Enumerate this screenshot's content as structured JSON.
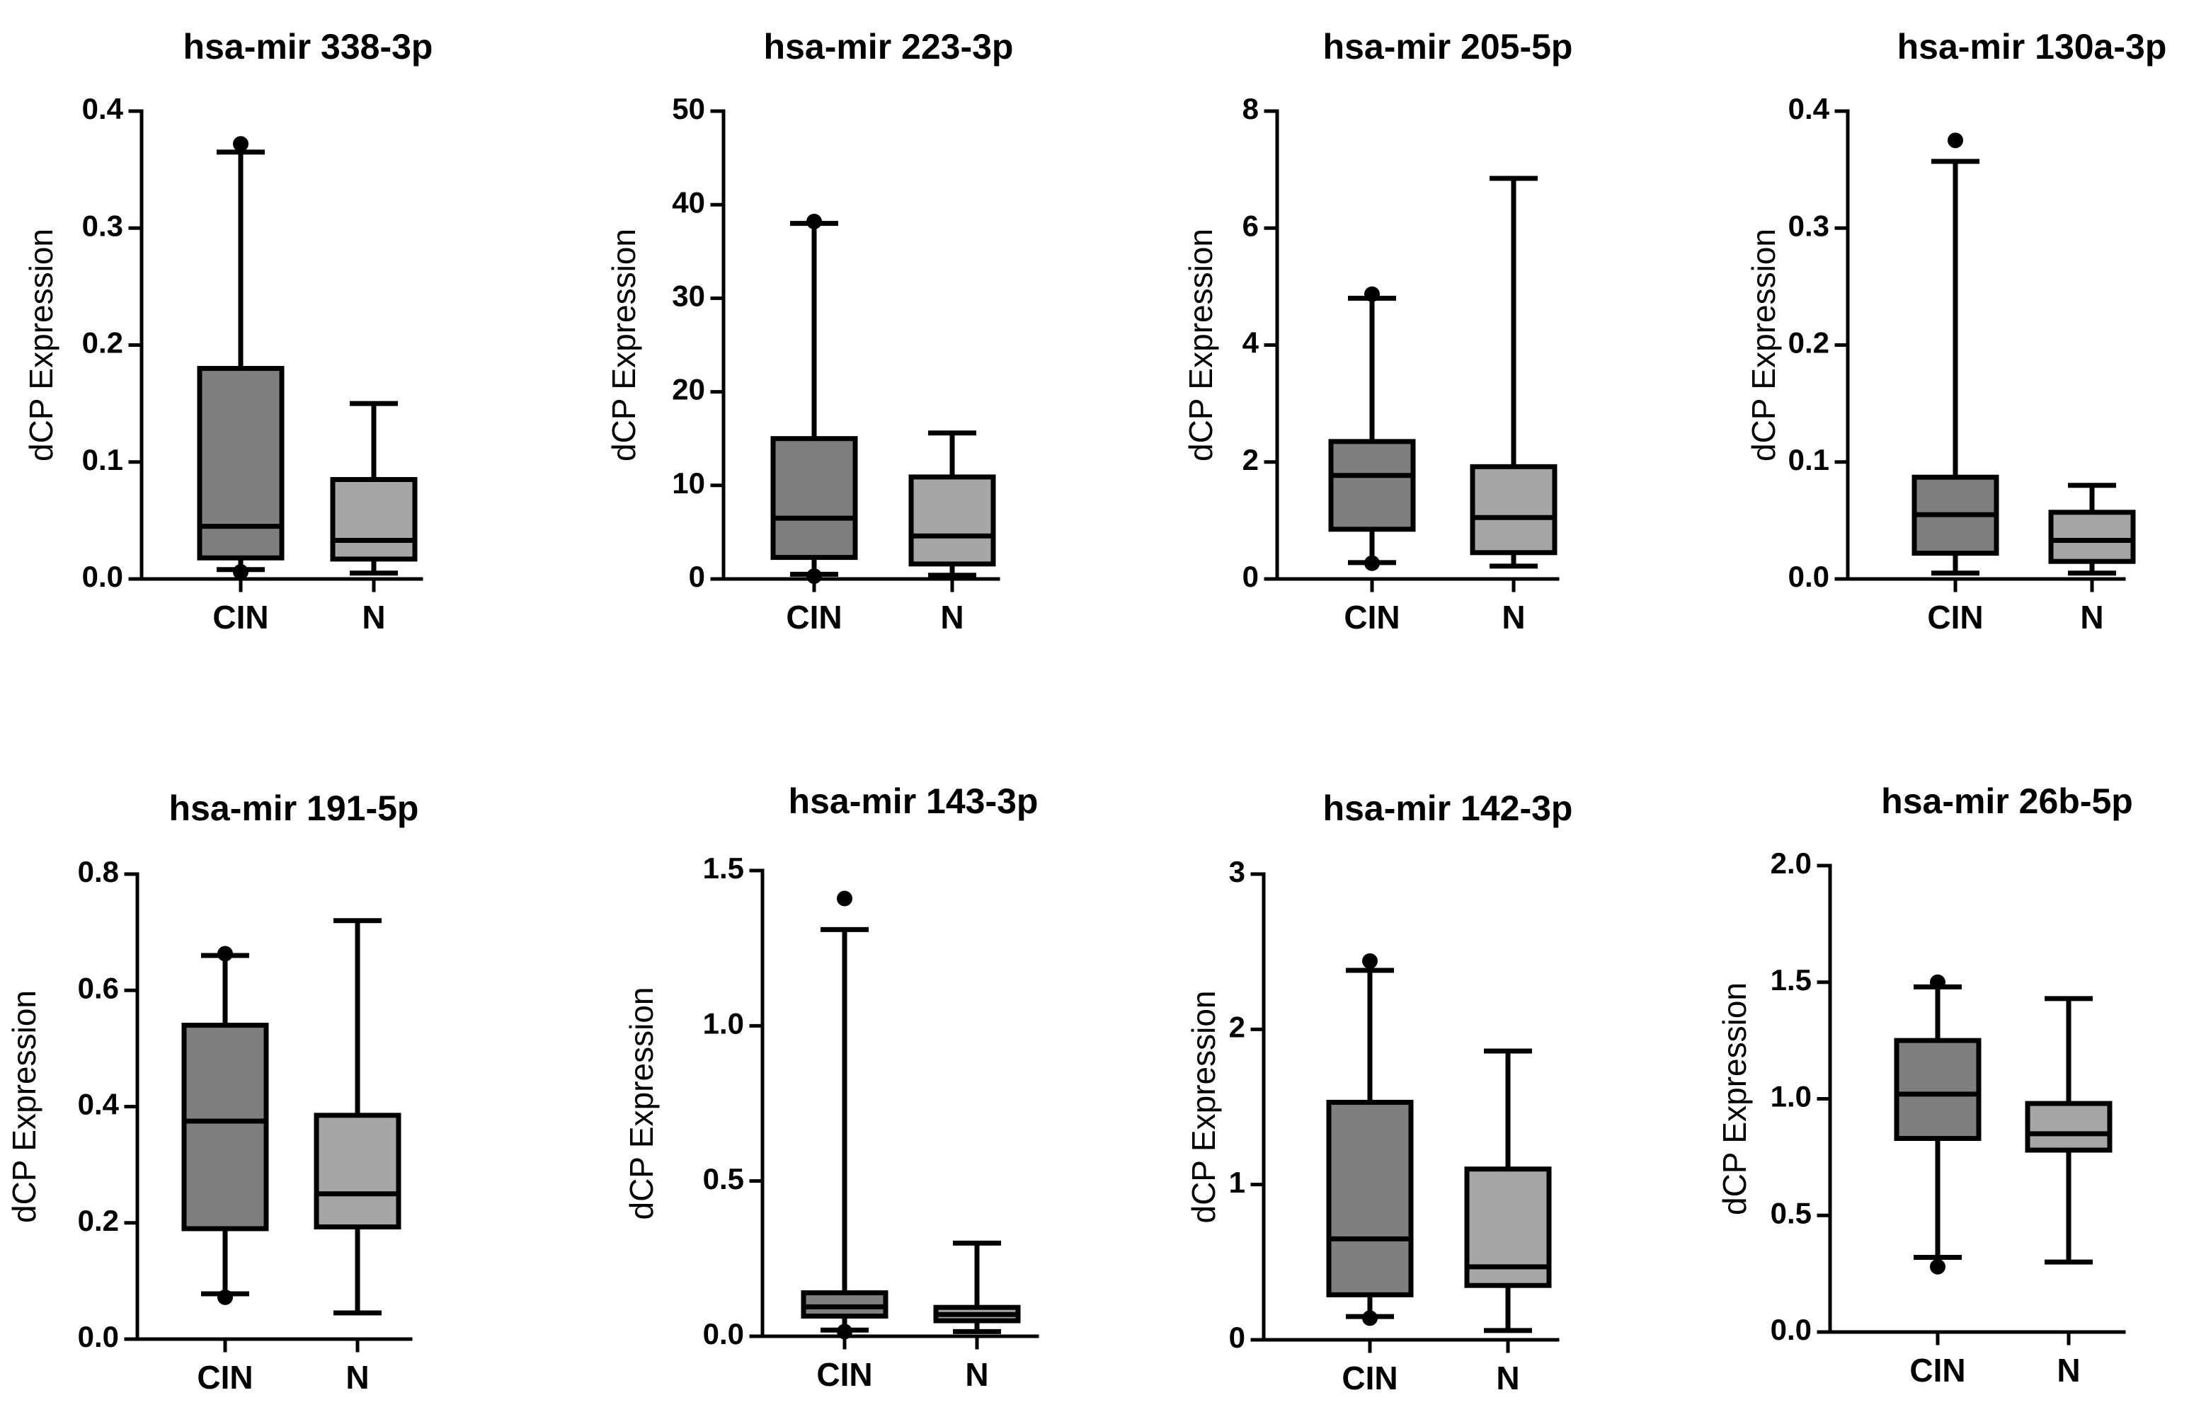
{
  "chart_data": [
    {
      "type": "box",
      "title": "hsa-mir 338-3p",
      "ylabel": "dCP Expression",
      "ylim": [
        0,
        0.4
      ],
      "yticks": [
        "0.0",
        "0.1",
        "0.2",
        "0.3",
        "0.4"
      ],
      "categories": [
        "CIN",
        "N"
      ],
      "series": [
        {
          "category": "CIN",
          "whisker_low": 0.008,
          "q1": 0.018,
          "median": 0.045,
          "q3": 0.18,
          "whisker_high": 0.365,
          "outliers": [
            0.372,
            0.006
          ]
        },
        {
          "category": "N",
          "whisker_low": 0.005,
          "q1": 0.017,
          "median": 0.033,
          "q3": 0.085,
          "whisker_high": 0.15,
          "outliers": []
        }
      ]
    },
    {
      "type": "box",
      "title": "hsa-mir 223-3p",
      "ylabel": "dCP Expression",
      "ylim": [
        0,
        50
      ],
      "yticks": [
        "0",
        "10",
        "20",
        "30",
        "40",
        "50"
      ],
      "categories": [
        "CIN",
        "N"
      ],
      "series": [
        {
          "category": "CIN",
          "whisker_low": 0.5,
          "q1": 2.3,
          "median": 6.5,
          "q3": 15.0,
          "whisker_high": 38.0,
          "outliers": [
            38.2,
            0.3
          ]
        },
        {
          "category": "N",
          "whisker_low": 0.4,
          "q1": 1.6,
          "median": 4.6,
          "q3": 10.9,
          "whisker_high": 15.6,
          "outliers": []
        }
      ]
    },
    {
      "type": "box",
      "title": "hsa-mir 205-5p",
      "ylabel": "dCP Expression",
      "ylim": [
        0,
        8
      ],
      "yticks": [
        "0",
        "2",
        "4",
        "6",
        "8"
      ],
      "categories": [
        "CIN",
        "N"
      ],
      "series": [
        {
          "category": "CIN",
          "whisker_low": 0.28,
          "q1": 0.85,
          "median": 1.77,
          "q3": 2.35,
          "whisker_high": 4.8,
          "outliers": [
            4.87,
            0.27
          ]
        },
        {
          "category": "N",
          "whisker_low": 0.22,
          "q1": 0.45,
          "median": 1.05,
          "q3": 1.92,
          "whisker_high": 6.85,
          "outliers": []
        }
      ]
    },
    {
      "type": "box",
      "title": "hsa-mir 130a-3p",
      "ylabel": "dCP Expression",
      "ylim": [
        0,
        0.4
      ],
      "yticks": [
        "0.0",
        "0.1",
        "0.2",
        "0.3",
        "0.4"
      ],
      "categories": [
        "CIN",
        "N"
      ],
      "series": [
        {
          "category": "CIN",
          "whisker_low": 0.005,
          "q1": 0.022,
          "median": 0.055,
          "q3": 0.087,
          "whisker_high": 0.357,
          "outliers": [
            0.375
          ]
        },
        {
          "category": "N",
          "whisker_low": 0.005,
          "q1": 0.015,
          "median": 0.033,
          "q3": 0.057,
          "whisker_high": 0.08,
          "outliers": []
        }
      ]
    },
    {
      "type": "box",
      "title": "hsa-mir 191-5p",
      "ylabel": "dCP Expression",
      "ylim": [
        0,
        0.8
      ],
      "yticks": [
        "0.0",
        "0.2",
        "0.4",
        "0.6",
        "0.8"
      ],
      "categories": [
        "CIN",
        "N"
      ],
      "series": [
        {
          "category": "CIN",
          "whisker_low": 0.078,
          "q1": 0.19,
          "median": 0.375,
          "q3": 0.54,
          "whisker_high": 0.66,
          "outliers": [
            0.663,
            0.072
          ]
        },
        {
          "category": "N",
          "whisker_low": 0.045,
          "q1": 0.193,
          "median": 0.25,
          "q3": 0.385,
          "whisker_high": 0.72,
          "outliers": []
        }
      ]
    },
    {
      "type": "box",
      "title": "hsa-mir 143-3p",
      "ylabel": "dCP Expression",
      "ylim": [
        0,
        1.5
      ],
      "yticks": [
        "0.0",
        "0.5",
        "1.0",
        "1.5"
      ],
      "categories": [
        "CIN",
        "N"
      ],
      "series": [
        {
          "category": "CIN",
          "whisker_low": 0.02,
          "q1": 0.065,
          "median": 0.095,
          "q3": 0.14,
          "whisker_high": 1.31,
          "outliers": [
            1.41,
            0.015
          ]
        },
        {
          "category": "N",
          "whisker_low": 0.015,
          "q1": 0.05,
          "median": 0.07,
          "q3": 0.093,
          "whisker_high": 0.3,
          "outliers": []
        }
      ]
    },
    {
      "type": "box",
      "title": "hsa-mir 142-3p",
      "ylabel": "dCP Expression",
      "ylim": [
        0,
        3
      ],
      "yticks": [
        "0",
        "1",
        "2",
        "3"
      ],
      "categories": [
        "CIN",
        "N"
      ],
      "series": [
        {
          "category": "CIN",
          "whisker_low": 0.15,
          "q1": 0.29,
          "median": 0.65,
          "q3": 1.53,
          "whisker_high": 2.38,
          "outliers": [
            2.44,
            0.14
          ]
        },
        {
          "category": "N",
          "whisker_low": 0.06,
          "q1": 0.35,
          "median": 0.47,
          "q3": 1.1,
          "whisker_high": 1.86,
          "outliers": []
        }
      ]
    },
    {
      "type": "box",
      "title": "hsa-mir 26b-5p",
      "ylabel": "dCP Expression",
      "ylim": [
        0,
        2.0
      ],
      "yticks": [
        "0.0",
        "0.5",
        "1.0",
        "1.5",
        "2.0"
      ],
      "categories": [
        "CIN",
        "N"
      ],
      "series": [
        {
          "category": "CIN",
          "whisker_low": 0.32,
          "q1": 0.83,
          "median": 1.02,
          "q3": 1.25,
          "whisker_high": 1.48,
          "outliers": [
            1.5,
            0.28
          ]
        },
        {
          "category": "N",
          "whisker_low": 0.3,
          "q1": 0.78,
          "median": 0.85,
          "q3": 0.98,
          "whisker_high": 1.43,
          "outliers": []
        }
      ]
    }
  ],
  "colors": {
    "cin_box": "#7f7f7f",
    "n_box": "#a6a6a6",
    "line": "#000000"
  }
}
